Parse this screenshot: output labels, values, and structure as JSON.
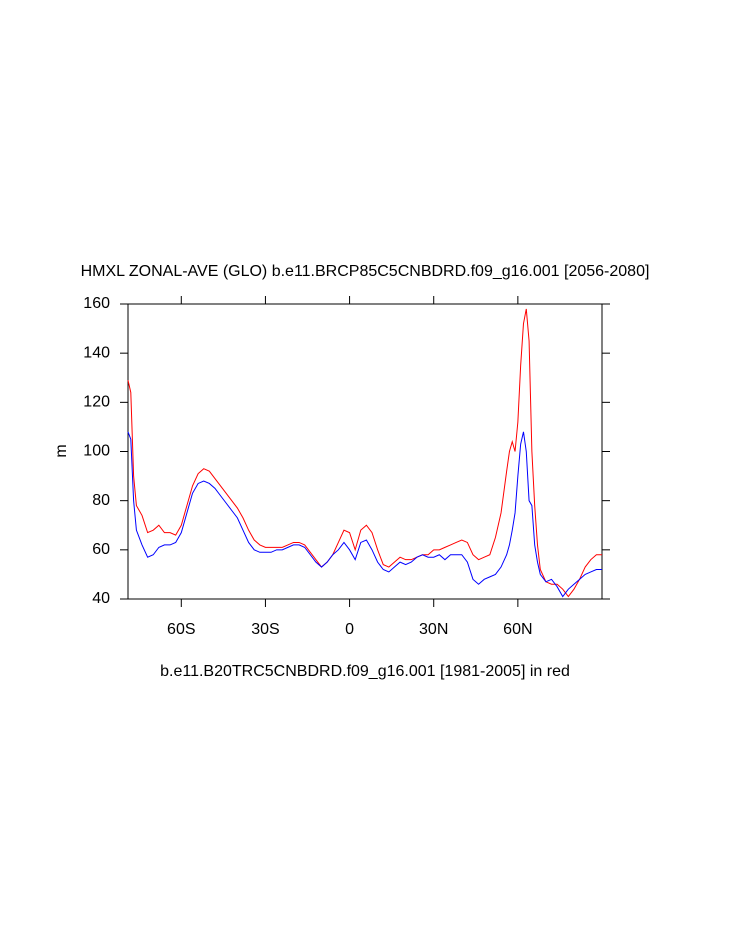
{
  "chart_data": {
    "type": "line",
    "title": "HMXL ZONAL-AVE (GLO) b.e11.BRCP85C5CNBDRD.f09_g16.001 [2056-2080]",
    "x_label": "b.e11.B20TRC5CNBDRD.f09_g16.001 [1981-2005] in red",
    "y_label": "m",
    "x": [
      -79,
      -78,
      -77,
      -76,
      -74,
      -72,
      -70,
      -68,
      -66,
      -64,
      -62,
      -60,
      -58,
      -56,
      -54,
      -52,
      -50,
      -48,
      -46,
      -44,
      -42,
      -40,
      -38,
      -36,
      -34,
      -32,
      -30,
      -28,
      -26,
      -24,
      -22,
      -20,
      -18,
      -16,
      -14,
      -12,
      -10,
      -8,
      -6,
      -4,
      -2,
      0,
      2,
      4,
      6,
      8,
      10,
      12,
      14,
      16,
      18,
      20,
      22,
      24,
      26,
      28,
      30,
      32,
      34,
      36,
      38,
      40,
      42,
      44,
      46,
      48,
      50,
      52,
      54,
      56,
      57,
      58,
      59,
      60,
      61,
      62,
      63,
      64,
      65,
      66,
      67,
      68,
      70,
      72,
      74,
      76,
      78,
      80,
      82,
      84,
      86,
      88,
      90
    ],
    "series": [
      {
        "color": "#ff0000",
        "values": [
          129,
          124,
          90,
          78,
          74,
          67,
          68,
          70,
          67,
          67,
          66,
          70,
          78,
          86,
          91,
          93,
          92,
          89,
          86,
          83,
          80,
          77,
          73,
          68,
          64,
          62,
          61,
          61,
          61,
          61,
          62,
          63,
          63,
          62,
          59,
          56,
          53,
          55,
          58,
          63,
          68,
          67,
          60,
          68,
          70,
          67,
          60,
          54,
          53,
          55,
          57,
          56,
          56,
          57,
          58,
          58,
          60,
          60,
          61,
          62,
          63,
          64,
          63,
          58,
          56,
          57,
          58,
          65,
          75,
          92,
          100,
          104,
          100,
          112,
          135,
          152,
          158,
          145,
          100,
          78,
          62,
          52,
          47,
          46,
          46,
          44,
          41,
          44,
          48,
          53,
          56,
          58,
          58
        ]
      },
      {
        "color": "#0000ff",
        "values": [
          108,
          105,
          80,
          68,
          62,
          57,
          58,
          61,
          62,
          62,
          63,
          67,
          75,
          83,
          87,
          88,
          87,
          85,
          82,
          79,
          76,
          73,
          68,
          63,
          60,
          59,
          59,
          59,
          60,
          60,
          61,
          62,
          62,
          61,
          58,
          55,
          53,
          55,
          58,
          60,
          63,
          60,
          56,
          63,
          64,
          60,
          55,
          52,
          51,
          53,
          55,
          54,
          55,
          57,
          58,
          57,
          57,
          58,
          56,
          58,
          58,
          58,
          55,
          48,
          46,
          48,
          49,
          50,
          53,
          58,
          62,
          68,
          75,
          90,
          103,
          108,
          100,
          80,
          78,
          62,
          55,
          50,
          47,
          48,
          45,
          41,
          44,
          46,
          48,
          50,
          51,
          52,
          52
        ]
      }
    ],
    "xlim": [
      -79,
      90
    ],
    "xticks": [
      {
        "value": -60,
        "label": "60S"
      },
      {
        "value": -30,
        "label": "30S"
      },
      0,
      {
        "value": 30,
        "label": "30N"
      },
      {
        "value": 60,
        "label": "60N"
      }
    ],
    "ylim": [
      40,
      160
    ],
    "yticks": [
      40,
      60,
      80,
      100,
      120,
      140,
      160
    ],
    "grid": false
  }
}
